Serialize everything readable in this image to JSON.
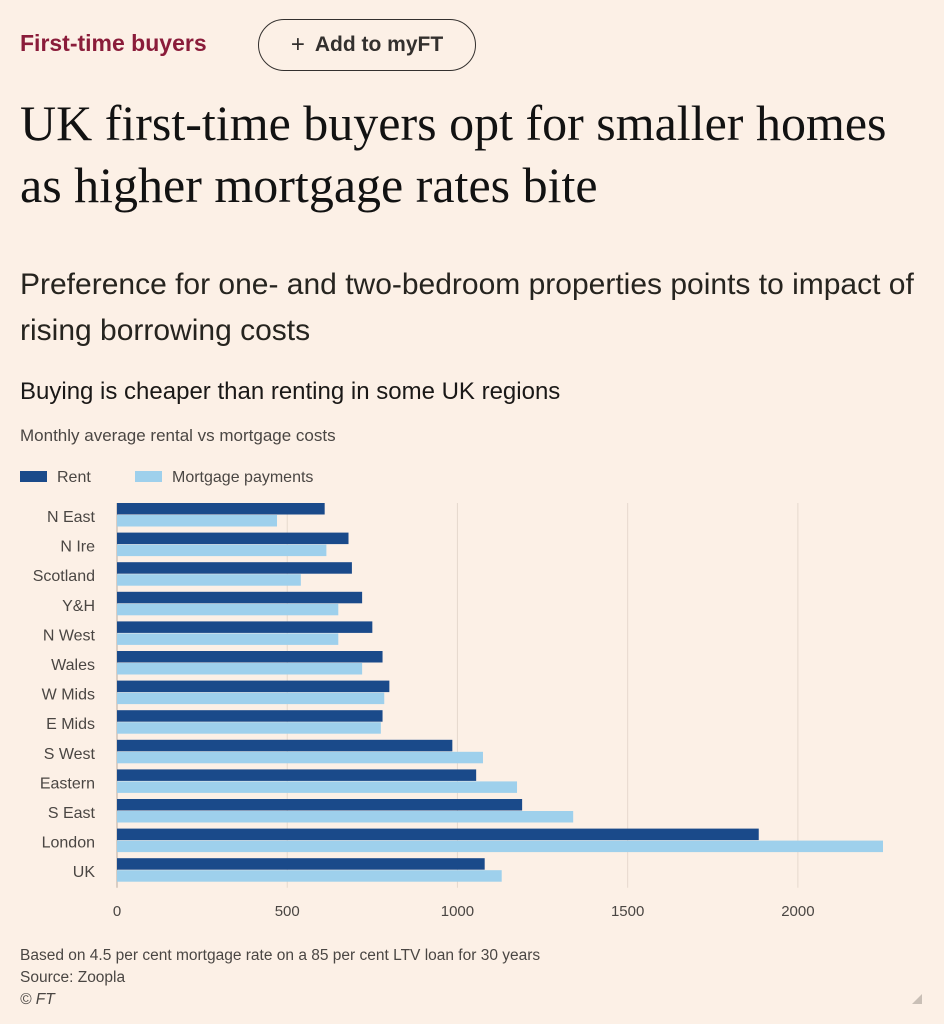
{
  "header": {
    "topic": "First-time buyers",
    "myft_label": "Add to myFT"
  },
  "article": {
    "headline": "UK first-time buyers opt for smaller homes as higher mortgage rates bite",
    "standfirst": "Preference for one- and two-bedroom properties points to impact of rising borrowing costs"
  },
  "chart_data": {
    "type": "bar",
    "orientation": "horizontal",
    "title": "Buying is cheaper than renting in some UK regions",
    "subtitle": "Monthly average rental vs mortgage costs",
    "categories": [
      "N East",
      "N Ire",
      "Scotland",
      "Y&H",
      "N West",
      "Wales",
      "W Mids",
      "E Mids",
      "S West",
      "Eastern",
      "S East",
      "London",
      "UK"
    ],
    "series": [
      {
        "name": "Rent",
        "color": "#1a4a8a",
        "values": [
          610,
          680,
          690,
          720,
          750,
          780,
          800,
          780,
          985,
          1055,
          1190,
          1885,
          1080
        ]
      },
      {
        "name": "Mortgage payments",
        "color": "#9ed0ec",
        "values": [
          470,
          615,
          540,
          650,
          650,
          720,
          785,
          775,
          1075,
          1175,
          1340,
          2250,
          1130
        ]
      }
    ],
    "xlim": [
      0,
      2250
    ],
    "xticks": [
      "0",
      "500",
      "1000",
      "1500",
      "2000"
    ],
    "xlabel": "",
    "ylabel": "",
    "grid": true,
    "legend": "top-left"
  },
  "footer": {
    "note": "Based on 4.5 per cent mortgage rate on a 85 per cent LTV loan for 30 years",
    "source": "Source: Zoopla",
    "copyright": "© FT"
  }
}
